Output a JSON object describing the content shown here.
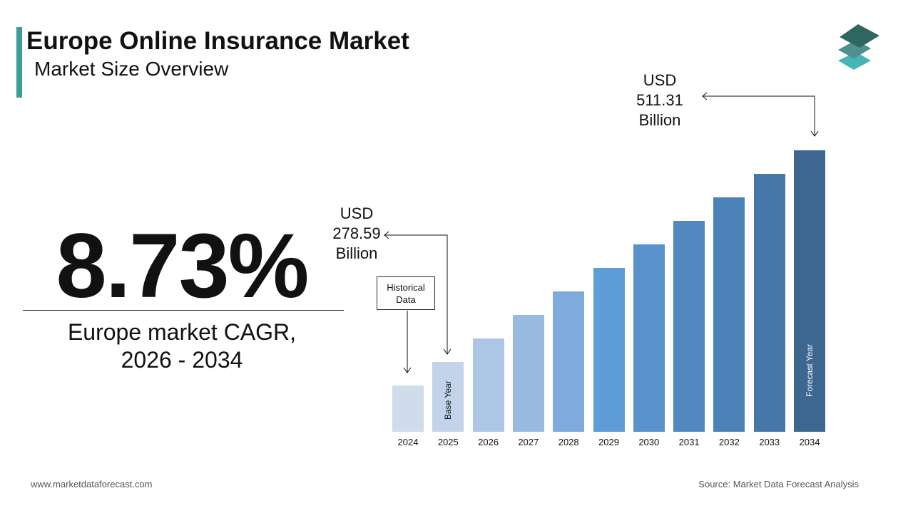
{
  "header": {
    "title": "Europe Online Insurance Market",
    "subtitle": "Market Size Overview"
  },
  "kpi": {
    "value": "8.73%",
    "label_line1": "Europe market CAGR,",
    "label_line2": "2026 - 2034"
  },
  "callouts": {
    "base": {
      "l1": "USD",
      "l2": "278.59",
      "l3": "Billion"
    },
    "forecast": {
      "l1": "USD",
      "l2": "511.31",
      "l3": "Billion"
    },
    "historical": {
      "l1": "Historical",
      "l2": "Data"
    }
  },
  "bar_labels": {
    "base": "Base Year",
    "forecast": "Forecast Year"
  },
  "footer": {
    "website": "www.marketdataforecast.com",
    "source": "Source: Market Data Forecast Analysis"
  },
  "colors": {
    "accent": "#3a9c9c",
    "logo": [
      "#2f6660",
      "#4f8f8c",
      "#46b5b5"
    ]
  },
  "chart_data": {
    "type": "bar",
    "title": "",
    "xlabel": "",
    "ylabel": "",
    "categories": [
      "2024",
      "2025",
      "2026",
      "2027",
      "2028",
      "2029",
      "2030",
      "2031",
      "2032",
      "2033",
      "2034"
    ],
    "values": [
      null,
      278.59,
      null,
      null,
      null,
      null,
      null,
      null,
      null,
      null,
      511.31
    ],
    "unit": "USD Billion",
    "grid": false,
    "colors": [
      "#d0dcec",
      "#c2d3ea",
      "#adc6e6",
      "#98b9e0",
      "#7eaadd",
      "#5f9dd8",
      "#5a92cc",
      "#5088bf",
      "#4b82b7",
      "#4677a8",
      "#3d6690"
    ]
  }
}
